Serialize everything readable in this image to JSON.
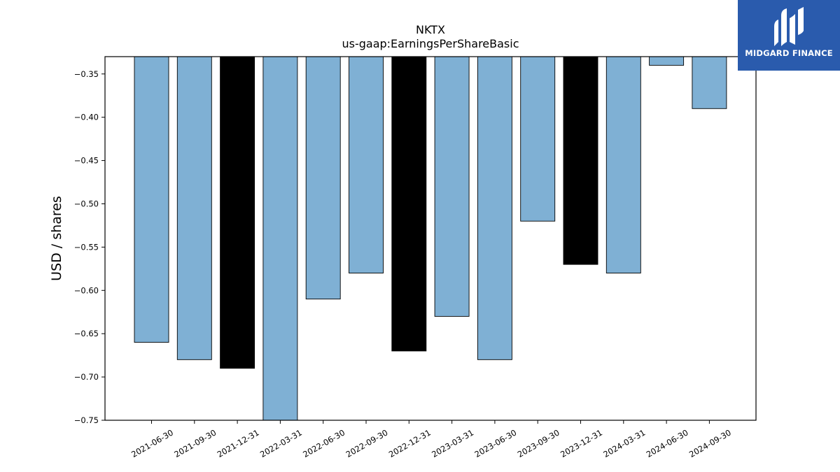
{
  "chart_data": {
    "type": "bar",
    "title": "NKTX",
    "subtitle": "us-gaap:EarningsPerShareBasic",
    "xlabel": "",
    "ylabel": "USD / shares",
    "ylim": [
      -0.75,
      -0.33
    ],
    "yticks": [
      "-0.35",
      "-0.40",
      "-0.45",
      "-0.50",
      "-0.55",
      "-0.60",
      "-0.65",
      "-0.70",
      "-0.75"
    ],
    "grid": false,
    "categories": [
      "2021-06-30",
      "2021-09-30",
      "2021-12-31",
      "2022-03-31",
      "2022-06-30",
      "2022-09-30",
      "2022-12-31",
      "2023-03-31",
      "2023-06-30",
      "2023-09-30",
      "2023-12-31",
      "2024-03-31",
      "2024-06-30",
      "2024-09-30"
    ],
    "values": [
      -0.66,
      -0.68,
      -0.69,
      -0.75,
      -0.61,
      -0.58,
      -0.67,
      -0.63,
      -0.68,
      -0.52,
      -0.57,
      -0.58,
      -0.34,
      -0.39
    ],
    "highlight": [
      false,
      false,
      true,
      false,
      false,
      false,
      true,
      false,
      false,
      false,
      true,
      false,
      false,
      false
    ],
    "colors": {
      "bar": "#7fb0d4",
      "highlight": "#000000",
      "edge": "#000000"
    }
  },
  "logo": {
    "text": "MIDGARD FINANCE",
    "color": "#2a5bad"
  }
}
